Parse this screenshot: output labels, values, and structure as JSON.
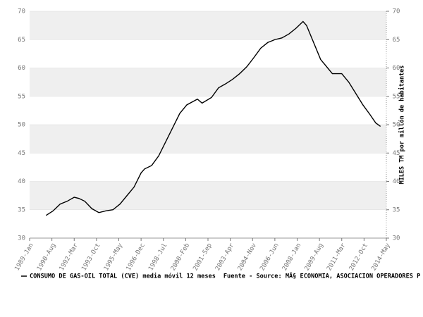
{
  "chart_data": {
    "type": "line",
    "y2_label": "MILES TM por millón de habitantes",
    "source": "Fuente - Source: MÂ§ ECONOMIA, ASOCIACION OPERADORES P",
    "xlim": [
      "1989-01",
      "2014-05"
    ],
    "xticks": [
      {
        "value": "1989-01",
        "label": "1989-Jan"
      },
      {
        "value": "1990-08",
        "label": "1990-Aug"
      },
      {
        "value": "1992-03",
        "label": "1992-Mar"
      },
      {
        "value": "1993-10",
        "label": "1993-Oct"
      },
      {
        "value": "1995-05",
        "label": "1995-May"
      },
      {
        "value": "1996-12",
        "label": "1996-Dec"
      },
      {
        "value": "1998-07",
        "label": "1998-Jul"
      },
      {
        "value": "2000-02",
        "label": "2000-Feb"
      },
      {
        "value": "2001-09",
        "label": "2001-Sep"
      },
      {
        "value": "2003-04",
        "label": "2003-Apr"
      },
      {
        "value": "2004-11",
        "label": "2004-Nov"
      },
      {
        "value": "2006-06",
        "label": "2006-Jun"
      },
      {
        "value": "2008-01",
        "label": "2008-Jan"
      },
      {
        "value": "2009-08",
        "label": "2009-Aug"
      },
      {
        "value": "2011-03",
        "label": "2011-Mar"
      },
      {
        "value": "2012-10",
        "label": "2012-Oct"
      },
      {
        "value": "2014-05",
        "label": "2014-May"
      }
    ],
    "ylim": [
      30,
      70
    ],
    "yticks": [
      30,
      35,
      40,
      45,
      50,
      55,
      60,
      65,
      70
    ],
    "y2lim": [
      30,
      70
    ],
    "y2ticks": [
      30,
      35,
      40,
      45,
      50,
      55,
      60,
      65,
      70
    ],
    "bands": true,
    "x": [
      "1990-03",
      "1990-09",
      "1991-03",
      "1991-09",
      "1992-03",
      "1992-07",
      "1992-12",
      "1993-06",
      "1993-12",
      "1994-06",
      "1994-12",
      "1995-06",
      "1995-12",
      "1996-06",
      "1996-12",
      "1997-03",
      "1997-09",
      "1998-03",
      "1998-09",
      "1999-03",
      "1999-09",
      "2000-03",
      "2000-12",
      "2001-04",
      "2001-12",
      "2002-06",
      "2002-12",
      "2003-06",
      "2003-12",
      "2004-06",
      "2004-12",
      "2005-06",
      "2005-12",
      "2006-06",
      "2006-12",
      "2007-06",
      "2007-12",
      "2008-06",
      "2008-09",
      "2009-03",
      "2009-09",
      "2010-03",
      "2010-07",
      "2011-03",
      "2011-09",
      "2012-03",
      "2012-09",
      "2013-03",
      "2013-08",
      "2013-12"
    ],
    "series": [
      {
        "name": "CONSUMO DE GAS-OIL TOTAL (CVE) media móvil 12 meses",
        "color": "#000000",
        "values": [
          34.0,
          34.8,
          36.0,
          36.5,
          37.2,
          37.0,
          36.5,
          35.2,
          34.5,
          34.8,
          35.0,
          36.0,
          37.5,
          39.0,
          41.5,
          42.2,
          42.8,
          44.5,
          47.0,
          49.5,
          52.0,
          53.5,
          54.5,
          53.8,
          54.8,
          56.5,
          57.2,
          58.0,
          59.0,
          60.2,
          61.8,
          63.5,
          64.5,
          65.0,
          65.3,
          66.0,
          67.0,
          68.2,
          67.5,
          64.5,
          61.5,
          60.0,
          59.0,
          59.0,
          57.5,
          55.5,
          53.5,
          51.8,
          50.3,
          49.7
        ]
      }
    ]
  }
}
